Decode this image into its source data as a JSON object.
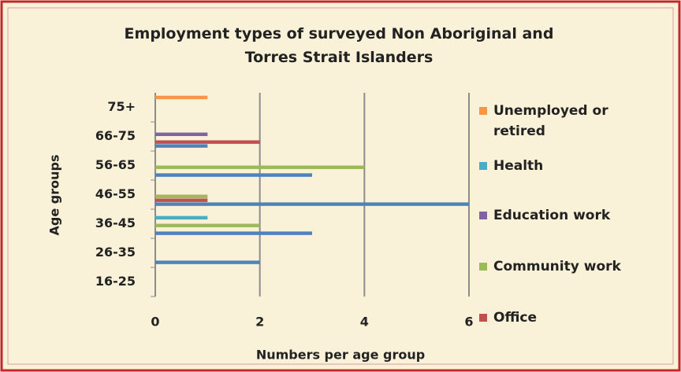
{
  "chart_data": {
    "type": "hbar",
    "title": "Employment types of surveyed Non Aboriginal and Torres Strait Islanders",
    "categories": [
      "75+",
      "66-75",
      "56-65",
      "46-55",
      "36-45",
      "26-35",
      "16-25"
    ],
    "series": [
      {
        "color": "#4f81bd",
        "values": [
          0,
          1,
          3,
          6,
          3,
          2,
          0
        ]
      },
      {
        "name": "Office",
        "color": "#c0504d",
        "values": [
          0,
          2,
          0,
          1,
          0,
          0,
          0
        ]
      },
      {
        "name": "Community work",
        "color": "#9bbb59",
        "values": [
          0,
          0,
          4,
          1,
          2,
          0,
          0
        ]
      },
      {
        "name": "Education work",
        "color": "#8064a2",
        "values": [
          0,
          1,
          0,
          0,
          0,
          0,
          0
        ]
      },
      {
        "name": "Health",
        "color": "#4bacc6",
        "values": [
          0,
          0,
          0,
          0,
          1,
          0,
          0
        ]
      },
      {
        "name": "Unemployed or retired",
        "color": "#f79646",
        "values": [
          1,
          0,
          0,
          0,
          0,
          0,
          0
        ]
      }
    ],
    "xlabel": "Numbers per age group",
    "ylabel": "Age groups",
    "xlim": [
      0,
      6
    ],
    "xticks": [
      0,
      2,
      4,
      6
    ],
    "grid": true
  }
}
